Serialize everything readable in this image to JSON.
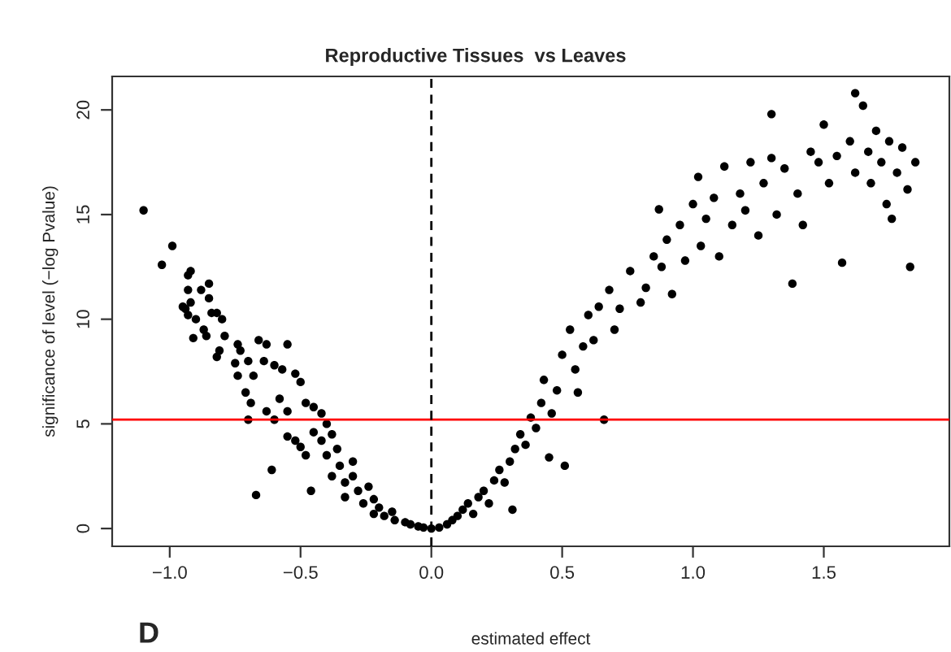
{
  "chart_data": {
    "type": "scatter",
    "title": "Reproductive Tissues  vs Leaves",
    "xlabel": "estimated effect",
    "ylabel": "significance of level (−log Pvalue)",
    "annotations": [
      "D"
    ],
    "xlim": [
      -1.22,
      1.98
    ],
    "ylim": [
      -0.85,
      21.6
    ],
    "xticks": [
      {
        "value": -1.0,
        "label": "−1.0"
      },
      {
        "value": -0.5,
        "label": "−0.5"
      },
      {
        "value": 0.0,
        "label": "0.0"
      },
      {
        "value": 0.5,
        "label": "0.5"
      },
      {
        "value": 1.0,
        "label": "1.0"
      },
      {
        "value": 1.5,
        "label": "1.5"
      }
    ],
    "yticks": [
      0,
      5,
      10,
      15,
      20
    ],
    "grid": false,
    "marker": "circle",
    "ref_lines": [
      {
        "axis": "y",
        "value": 5.2,
        "color": "#ff0000",
        "line_style": "solid"
      },
      {
        "axis": "x",
        "value": 0,
        "color": "#000000",
        "line_style": "dashed"
      }
    ],
    "series": [
      {
        "color": "#000000",
        "x": [
          -1.1,
          -1.03,
          -0.99,
          -0.93,
          -0.92,
          -0.93,
          -0.88,
          -0.85,
          -0.85,
          -0.95,
          -0.94,
          -0.92,
          -0.93,
          -0.9,
          -0.84,
          -0.82,
          -0.8,
          -0.79,
          -0.87,
          -0.86,
          -0.91,
          -0.81,
          -0.82,
          -0.74,
          -0.73,
          -0.75,
          -0.74,
          -0.7,
          -0.68,
          -0.71,
          -0.69,
          -0.66,
          -0.63,
          -0.64,
          -0.6,
          -0.55,
          -0.57,
          -0.52,
          -0.5,
          -0.58,
          -0.55,
          -0.63,
          -0.6,
          -0.7,
          -0.55,
          -0.52,
          -0.48,
          -0.45,
          -0.42,
          -0.4,
          -0.45,
          -0.5,
          -0.48,
          -0.61,
          -0.67,
          -0.46,
          -0.42,
          -0.38,
          -0.4,
          -0.36,
          -0.35,
          -0.38,
          -0.33,
          -0.3,
          -0.3,
          -0.28,
          -0.33,
          -0.26,
          -0.24,
          -0.22,
          -0.2,
          -0.22,
          -0.18,
          -0.15,
          -0.14,
          -0.1,
          -0.08,
          -0.05,
          -0.03,
          0.0,
          0.03,
          0.06,
          0.08,
          0.1,
          0.12,
          0.14,
          0.16,
          0.18,
          0.2,
          0.22,
          0.24,
          0.26,
          0.28,
          0.3,
          0.31,
          0.32,
          0.34,
          0.36,
          0.38,
          0.4,
          0.42,
          0.43,
          0.45,
          0.46,
          0.48,
          0.5,
          0.51,
          0.53,
          0.55,
          0.56,
          0.58,
          0.6,
          0.62,
          0.66,
          0.64,
          0.68,
          0.7,
          0.72,
          0.76,
          0.8,
          0.82,
          0.85,
          0.87,
          0.88,
          0.9,
          0.92,
          0.95,
          0.97,
          1.0,
          1.02,
          1.03,
          1.05,
          1.08,
          1.1,
          1.12,
          1.15,
          1.18,
          1.2,
          1.22,
          1.25,
          1.27,
          1.3,
          1.3,
          1.32,
          1.35,
          1.38,
          1.4,
          1.42,
          1.45,
          1.48,
          1.5,
          1.52,
          1.55,
          1.57,
          1.6,
          1.62,
          1.62,
          1.65,
          1.67,
          1.68,
          1.7,
          1.72,
          1.74,
          1.75,
          1.76,
          1.78,
          1.8,
          1.82,
          1.83,
          1.85
        ],
        "values": [
          15.2,
          12.6,
          13.5,
          12.1,
          12.3,
          11.4,
          11.4,
          11.7,
          11.0,
          10.6,
          10.5,
          10.8,
          10.2,
          10.0,
          10.3,
          10.3,
          10.0,
          9.2,
          9.5,
          9.2,
          9.1,
          8.5,
          8.2,
          8.8,
          8.5,
          7.9,
          7.3,
          8.0,
          7.3,
          6.5,
          6.0,
          9.0,
          8.8,
          8.0,
          7.8,
          8.8,
          7.6,
          7.4,
          7.0,
          6.2,
          5.6,
          5.6,
          5.2,
          5.2,
          4.4,
          4.2,
          6.0,
          5.8,
          5.5,
          5.0,
          4.6,
          3.9,
          3.5,
          2.8,
          1.6,
          1.8,
          4.2,
          4.5,
          3.5,
          3.8,
          3.0,
          2.5,
          2.2,
          3.2,
          2.5,
          1.8,
          1.5,
          1.2,
          2.0,
          1.4,
          1.0,
          0.7,
          0.6,
          0.8,
          0.4,
          0.3,
          0.2,
          0.1,
          0.05,
          0.0,
          0.05,
          0.2,
          0.4,
          0.6,
          0.9,
          1.2,
          0.7,
          1.5,
          1.8,
          1.2,
          2.3,
          2.8,
          2.2,
          3.2,
          0.9,
          3.8,
          4.5,
          4.0,
          5.3,
          4.8,
          6.0,
          7.1,
          3.4,
          5.5,
          6.6,
          8.3,
          3.0,
          9.5,
          7.6,
          6.5,
          8.7,
          10.2,
          9.0,
          5.2,
          10.6,
          11.4,
          9.5,
          10.5,
          12.3,
          10.8,
          11.5,
          13.0,
          15.25,
          12.5,
          13.8,
          11.2,
          14.5,
          12.8,
          15.5,
          16.8,
          13.5,
          14.8,
          15.8,
          13.0,
          17.3,
          14.5,
          16.0,
          15.2,
          17.5,
          14.0,
          16.5,
          19.8,
          17.7,
          15.0,
          17.2,
          11.7,
          16.0,
          14.5,
          18.0,
          17.5,
          19.3,
          16.5,
          17.8,
          12.7,
          18.5,
          20.8,
          17.0,
          20.2,
          18.0,
          16.5,
          19.0,
          17.5,
          15.5,
          18.5,
          14.8,
          17.0,
          18.2,
          16.2,
          12.5,
          17.5
        ]
      }
    ]
  }
}
